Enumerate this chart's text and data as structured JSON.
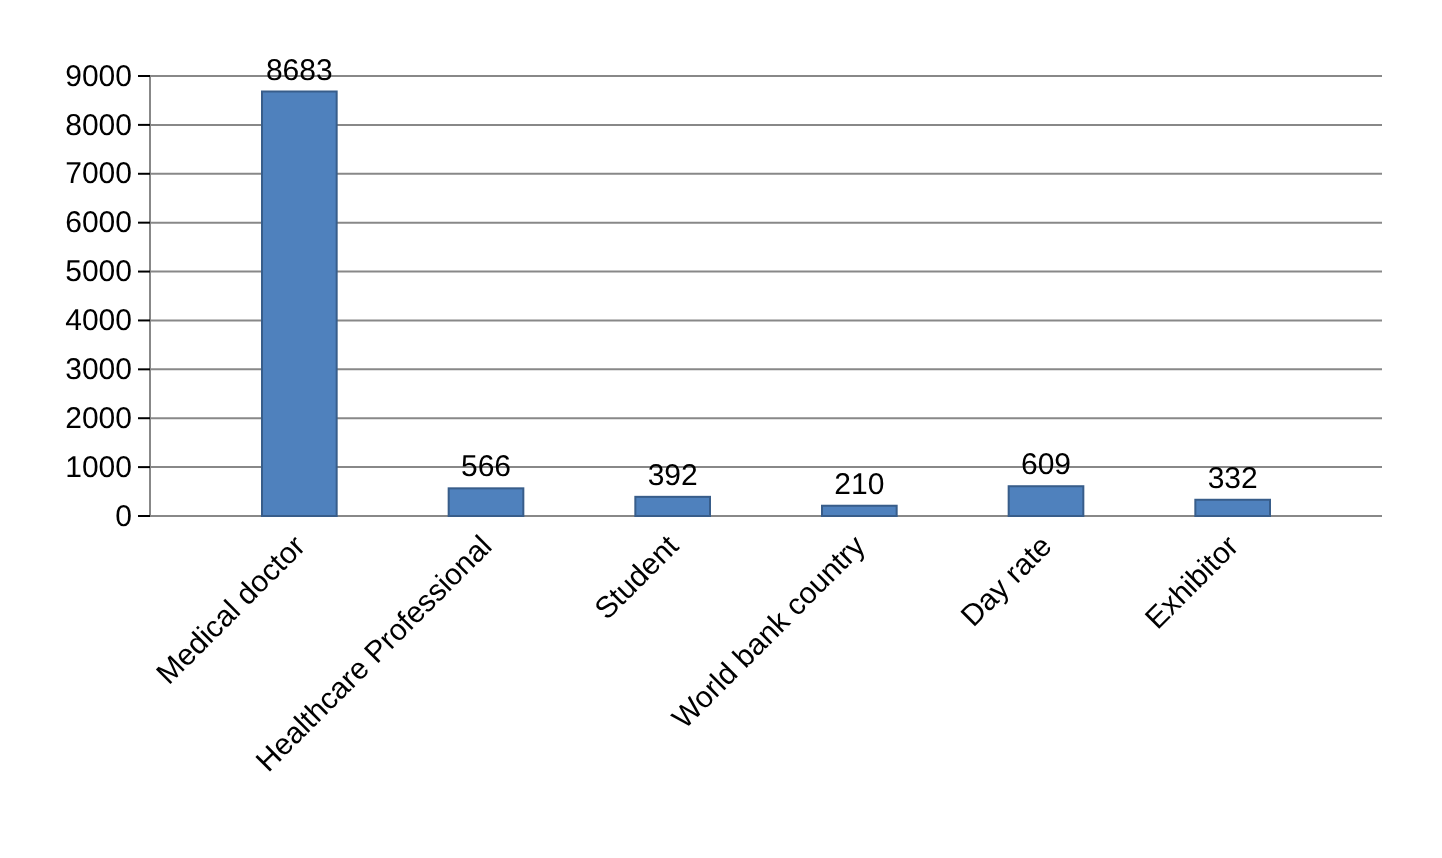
{
  "chart_data": {
    "type": "bar",
    "categories": [
      "Medical doctor",
      "Healthcare Professional",
      "Student",
      "World bank country",
      "Day rate",
      "Exhibitor"
    ],
    "values": [
      8683,
      566,
      392,
      210,
      609,
      332
    ],
    "color": "#4f81bd",
    "ylim": [
      0,
      9000
    ],
    "yticks": [
      0,
      1000,
      2000,
      3000,
      4000,
      5000,
      6000,
      7000,
      8000,
      9000
    ],
    "grid": "y",
    "data_labels": true
  }
}
